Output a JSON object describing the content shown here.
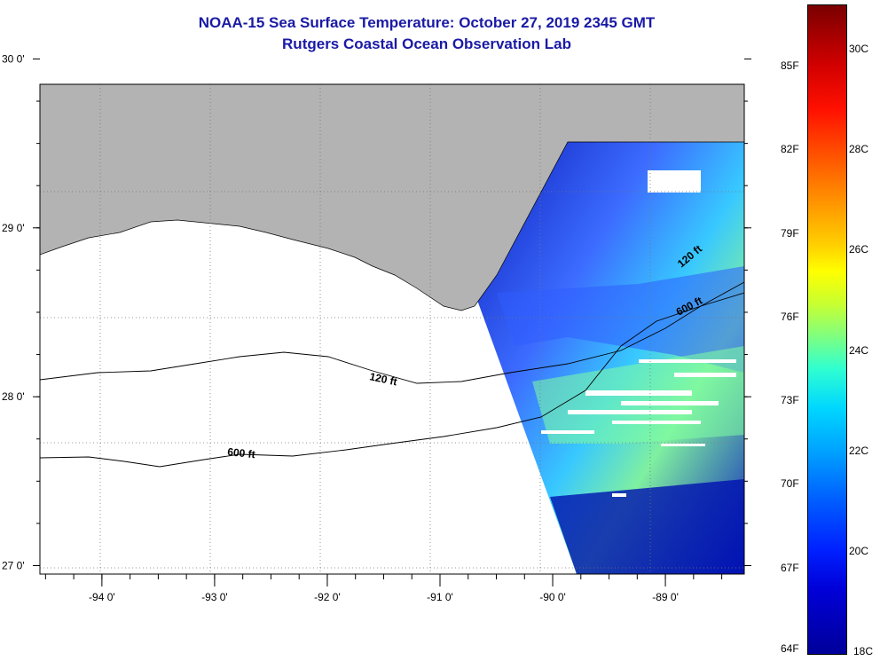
{
  "header": {
    "title": "NOAA-15 Sea Surface Temperature:  October 27, 2019 2345 GMT",
    "subtitle": "Rutgers Coastal Ocean Observation Lab"
  },
  "map": {
    "lon_range": [
      -94.55,
      -88.3
    ],
    "lat_range": [
      26.95,
      29.85
    ],
    "lon_ticks": [
      {
        "v": -94,
        "label": "-94 0'"
      },
      {
        "v": -93,
        "label": "-93 0'"
      },
      {
        "v": -92,
        "label": "-92 0'"
      },
      {
        "v": -91,
        "label": "-91 0'"
      },
      {
        "v": -90,
        "label": "-90 0'"
      },
      {
        "v": -89,
        "label": "-89 0'"
      }
    ],
    "lat_ticks": [
      {
        "v": 30,
        "label": "30 0'"
      },
      {
        "v": 29,
        "label": "29 0'"
      },
      {
        "v": 28,
        "label": "28 0'"
      },
      {
        "v": 27,
        "label": "27 0'"
      }
    ],
    "contour_labels": {
      "c120_west": "120 ft",
      "c600_west": "600 ft",
      "c120_east": "120 ft",
      "c600_east": "600 ft"
    },
    "colors": {
      "land": "#b3b3b3",
      "ocean_nodata": "#ffffff",
      "cold": "#0014c8",
      "mid": "#3a7cff"
    }
  },
  "colorbar": {
    "fahrenheit": [
      "85F",
      "82F",
      "79F",
      "76F",
      "73F",
      "70F",
      "67F",
      "64F"
    ],
    "celsius": [
      "30C",
      "28C",
      "26C",
      "24C",
      "22C",
      "20C",
      "18C"
    ]
  }
}
